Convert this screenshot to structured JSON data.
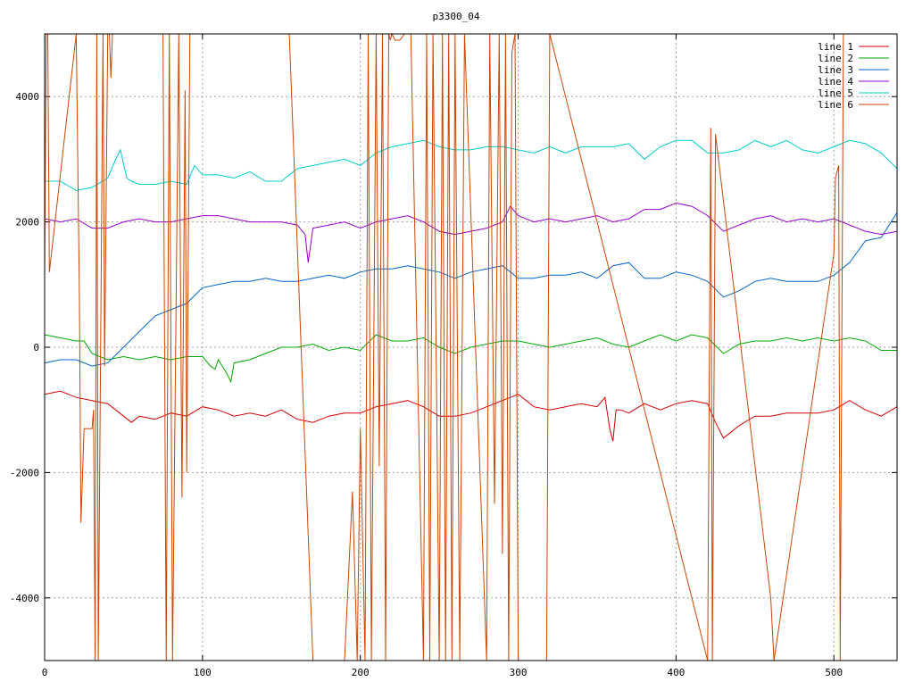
{
  "chart_data": {
    "type": "line",
    "title": "p3300_04",
    "xlabel": "",
    "ylabel": "",
    "xlim": [
      0,
      540
    ],
    "ylim": [
      -5000,
      5000
    ],
    "grid": true,
    "legend_position": "top-right",
    "x_ticks": [
      {
        "value": 0,
        "label": "0"
      },
      {
        "value": 100,
        "label": "100"
      },
      {
        "value": 200,
        "label": "200"
      },
      {
        "value": 300,
        "label": "300"
      },
      {
        "value": 400,
        "label": "400"
      },
      {
        "value": 500,
        "label": "500"
      }
    ],
    "y_ticks": [
      {
        "value": -4000,
        "label": "-4000"
      },
      {
        "value": -2000,
        "label": "-2000"
      },
      {
        "value": 0,
        "label": "0"
      },
      {
        "value": 2000,
        "label": "2000"
      },
      {
        "value": 4000,
        "label": "4000"
      }
    ],
    "series": [
      {
        "name": "line 1",
        "color": "#d40000",
        "x": [
          0,
          10,
          20,
          30,
          40,
          45,
          50,
          55,
          60,
          70,
          80,
          90,
          100,
          110,
          120,
          130,
          140,
          150,
          160,
          170,
          180,
          190,
          200,
          210,
          220,
          230,
          240,
          250,
          260,
          270,
          280,
          290,
          300,
          310,
          320,
          330,
          340,
          350,
          355,
          358,
          360,
          362,
          365,
          370,
          380,
          390,
          400,
          410,
          420,
          425,
          430,
          435,
          440,
          450,
          460,
          470,
          480,
          490,
          500,
          510,
          520,
          530,
          540
        ],
        "y": [
          -750,
          -700,
          -800,
          -850,
          -900,
          -1000,
          -1100,
          -1200,
          -1100,
          -1150,
          -1050,
          -1100,
          -950,
          -1000,
          -1100,
          -1050,
          -1100,
          -1000,
          -1150,
          -1200,
          -1100,
          -1050,
          -1050,
          -950,
          -900,
          -850,
          -950,
          -1100,
          -1100,
          -1050,
          -950,
          -850,
          -750,
          -950,
          -1000,
          -950,
          -900,
          -950,
          -800,
          -1300,
          -1500,
          -1000,
          -1000,
          -1050,
          -900,
          -1000,
          -900,
          -850,
          -900,
          -1200,
          -1450,
          -1350,
          -1250,
          -1100,
          -1100,
          -1050,
          -1050,
          -1050,
          -1000,
          -850,
          -1000,
          -1100,
          -950
        ]
      },
      {
        "name": "line 2",
        "color": "#00aa00",
        "x": [
          0,
          10,
          20,
          25,
          30,
          40,
          50,
          60,
          70,
          80,
          90,
          100,
          105,
          108,
          110,
          115,
          118,
          120,
          130,
          140,
          150,
          160,
          170,
          180,
          190,
          200,
          210,
          220,
          230,
          240,
          250,
          260,
          270,
          280,
          290,
          300,
          310,
          320,
          330,
          340,
          350,
          360,
          370,
          380,
          390,
          400,
          410,
          420,
          430,
          440,
          450,
          460,
          470,
          480,
          490,
          500,
          510,
          520,
          530,
          540
        ],
        "y": [
          200,
          150,
          100,
          100,
          -100,
          -200,
          -150,
          -200,
          -150,
          -200,
          -150,
          -150,
          -300,
          -350,
          -200,
          -400,
          -550,
          -250,
          -200,
          -100,
          0,
          0,
          50,
          -50,
          0,
          -50,
          200,
          100,
          100,
          150,
          0,
          -100,
          0,
          50,
          100,
          100,
          50,
          0,
          50,
          100,
          150,
          50,
          0,
          100,
          200,
          100,
          200,
          150,
          -100,
          50,
          100,
          100,
          150,
          100,
          150,
          100,
          150,
          100,
          -50,
          -50
        ]
      },
      {
        "name": "line 3",
        "color": "#0066cc",
        "x": [
          0,
          10,
          20,
          30,
          40,
          50,
          60,
          70,
          80,
          90,
          100,
          110,
          120,
          130,
          140,
          150,
          160,
          170,
          180,
          190,
          200,
          210,
          220,
          230,
          240,
          250,
          260,
          270,
          280,
          290,
          300,
          310,
          320,
          330,
          340,
          350,
          360,
          370,
          380,
          390,
          400,
          410,
          420,
          430,
          440,
          450,
          460,
          470,
          480,
          490,
          500,
          510,
          520,
          530,
          540
        ],
        "y": [
          -250,
          -200,
          -200,
          -300,
          -250,
          0,
          250,
          500,
          600,
          700,
          950,
          1000,
          1050,
          1050,
          1100,
          1050,
          1050,
          1100,
          1150,
          1100,
          1200,
          1250,
          1250,
          1300,
          1250,
          1200,
          1100,
          1200,
          1250,
          1300,
          1100,
          1100,
          1150,
          1150,
          1200,
          1100,
          1300,
          1350,
          1100,
          1100,
          1200,
          1150,
          1050,
          800,
          900,
          1050,
          1100,
          1050,
          1050,
          1050,
          1150,
          1350,
          1700,
          1750,
          2150
        ]
      },
      {
        "name": "line 4",
        "color": "#9900cc",
        "x": [
          0,
          10,
          20,
          30,
          40,
          50,
          60,
          70,
          80,
          90,
          100,
          110,
          120,
          130,
          140,
          150,
          160,
          165,
          167,
          170,
          180,
          190,
          200,
          210,
          220,
          230,
          240,
          250,
          260,
          270,
          280,
          290,
          295,
          300,
          310,
          320,
          330,
          340,
          350,
          360,
          370,
          380,
          390,
          400,
          410,
          420,
          430,
          440,
          450,
          460,
          470,
          480,
          490,
          500,
          510,
          520,
          530,
          540
        ],
        "y": [
          2050,
          2000,
          2050,
          1900,
          1900,
          2000,
          2050,
          2000,
          2000,
          2050,
          2100,
          2100,
          2050,
          2000,
          2000,
          2000,
          1950,
          1800,
          1350,
          1900,
          1950,
          2000,
          1900,
          2000,
          2050,
          2100,
          2000,
          1850,
          1800,
          1850,
          1900,
          2000,
          2250,
          2100,
          2000,
          2050,
          2000,
          2050,
          2100,
          2000,
          2050,
          2200,
          2200,
          2300,
          2250,
          2100,
          1850,
          1950,
          2050,
          2100,
          2000,
          2050,
          2000,
          2050,
          1950,
          1850,
          1800,
          1850
        ]
      },
      {
        "name": "line 5",
        "color": "#00cccc",
        "x": [
          0,
          10,
          20,
          30,
          40,
          45,
          48,
          52,
          55,
          60,
          70,
          80,
          90,
          95,
          100,
          110,
          120,
          130,
          140,
          150,
          160,
          170,
          180,
          190,
          200,
          210,
          220,
          230,
          240,
          250,
          260,
          270,
          280,
          290,
          300,
          310,
          320,
          330,
          340,
          350,
          360,
          370,
          380,
          390,
          400,
          410,
          420,
          430,
          440,
          450,
          460,
          470,
          480,
          490,
          500,
          510,
          520,
          530,
          540
        ],
        "y": [
          2650,
          2650,
          2500,
          2550,
          2700,
          3000,
          3150,
          2700,
          2650,
          2600,
          2600,
          2650,
          2600,
          2900,
          2750,
          2750,
          2700,
          2800,
          2650,
          2650,
          2850,
          2900,
          2950,
          3000,
          2900,
          3100,
          3200,
          3250,
          3300,
          3200,
          3150,
          3150,
          3200,
          3200,
          3150,
          3100,
          3200,
          3100,
          3200,
          3200,
          3200,
          3250,
          3000,
          3200,
          3300,
          3300,
          3100,
          3100,
          3150,
          3300,
          3200,
          3300,
          3150,
          3100,
          3200,
          3300,
          3250,
          3100,
          2850
        ]
      },
      {
        "name": "line 6",
        "color": "#cc4400",
        "x": [
          0,
          1,
          2,
          3,
          20,
          22,
          23,
          25,
          30,
          31,
          32,
          33,
          34,
          37,
          38,
          40,
          41,
          42,
          43,
          75,
          77,
          79,
          81,
          85,
          87,
          89,
          90,
          92,
          95,
          155,
          170,
          175,
          180,
          185,
          190,
          195,
          198,
          200,
          203,
          205,
          207,
          210,
          212,
          214,
          216,
          218,
          219,
          220,
          222,
          225,
          228,
          232,
          240,
          242,
          244,
          246,
          250,
          252,
          254,
          256,
          258,
          260,
          263,
          266,
          280,
          282,
          285,
          288,
          290,
          292,
          294,
          296,
          298,
          300,
          318,
          320,
          420,
          422,
          423,
          425,
          460,
          462,
          500,
          501,
          502,
          503,
          504,
          506,
          540
        ],
        "y": [
          1100,
          5000,
          5000,
          1200,
          5000,
          900,
          -2800,
          -1300,
          -1300,
          -1000,
          -5000,
          5000,
          -5000,
          5000,
          -300,
          5000,
          5000,
          4300,
          5000,
          5000,
          -5000,
          5000,
          -5000,
          5000,
          -2400,
          4100,
          -2000,
          5000,
          5000,
          5000,
          -5000,
          -5000,
          -5000,
          -5000,
          -5000,
          -2300,
          -5000,
          -1300,
          -5000,
          5000,
          -5000,
          5000,
          -1900,
          5000,
          -5000,
          5000,
          4900,
          5000,
          4900,
          4900,
          5000,
          5000,
          -5000,
          5000,
          -5000,
          5000,
          -5000,
          5000,
          -5000,
          5000,
          -5000,
          5000,
          -5000,
          5000,
          -5000,
          5000,
          -2500,
          5000,
          -3300,
          5000,
          -5000,
          4700,
          5000,
          -5000,
          -5000,
          5000,
          -5000,
          3500,
          -5000,
          3400,
          -4000,
          -5000,
          1500,
          2700,
          2800,
          2900,
          -5000,
          5000,
          5000
        ]
      }
    ]
  }
}
